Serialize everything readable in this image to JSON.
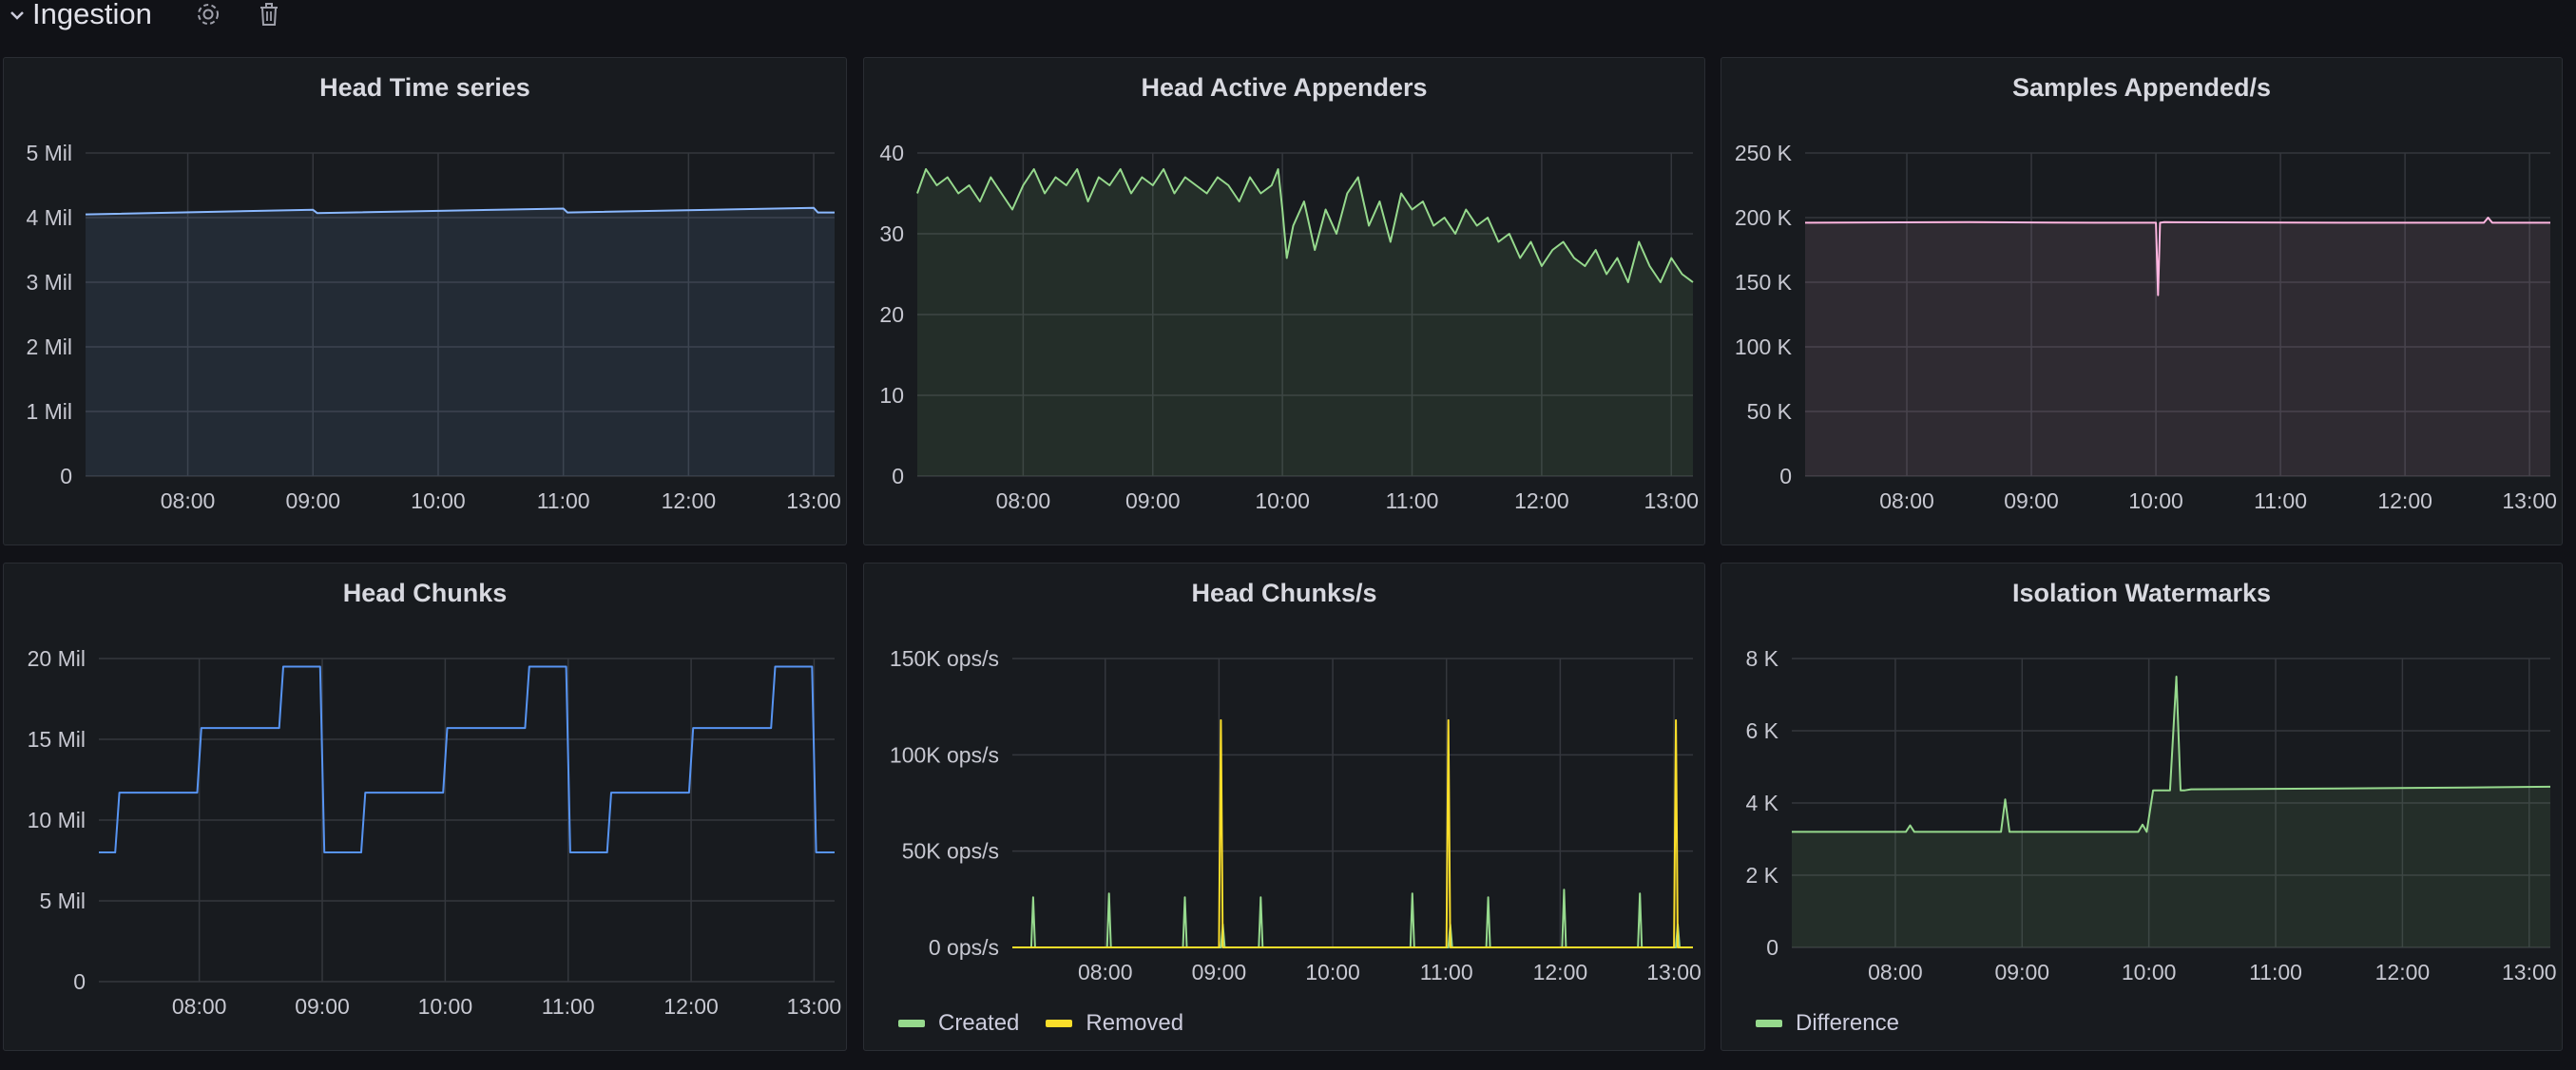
{
  "row": {
    "title": "Ingestion",
    "icons": [
      "chevron-down-icon",
      "gear-icon",
      "trash-icon"
    ]
  },
  "colors": {
    "grid": "#34373d",
    "axis_text": "#c7c8d1",
    "cyan": "#8ab8ff",
    "green": "#96d98d",
    "pink": "#ffb6e1",
    "blue": "#5794f2",
    "yellow": "#fade2a"
  },
  "chart_data": [
    {
      "id": "head-time-series",
      "type": "area",
      "title": "Head Time series",
      "x_ticks": [
        "08:00",
        "09:00",
        "10:00",
        "11:00",
        "12:00",
        "13:00"
      ],
      "x_range": [
        "07:11",
        "13:10"
      ],
      "y_ticks": [
        "5 Mil",
        "4 Mil",
        "3 Mil",
        "2 Mil",
        "1 Mil",
        "0"
      ],
      "ylim": [
        0,
        5000000
      ],
      "grid": true,
      "series": [
        {
          "color": "#8ab8ff",
          "x": [
            "07:11",
            "09:00",
            "09:02",
            "11:00",
            "11:02",
            "13:00",
            "13:02",
            "13:10"
          ],
          "y": [
            4050000,
            4120000,
            4070000,
            4140000,
            4080000,
            4150000,
            4080000,
            4080000
          ]
        }
      ]
    },
    {
      "id": "head-active-appenders",
      "type": "area",
      "title": "Head Active Appenders",
      "x_ticks": [
        "08:00",
        "09:00",
        "10:00",
        "11:00",
        "12:00",
        "13:00"
      ],
      "x_range": [
        "07:11",
        "13:10"
      ],
      "y_ticks": [
        "40",
        "30",
        "20",
        "10",
        "0"
      ],
      "ylim": [
        0,
        40
      ],
      "grid": true,
      "series": [
        {
          "color": "#96d98d",
          "x": [
            "07:11",
            "07:15",
            "07:20",
            "07:25",
            "07:30",
            "07:35",
            "07:40",
            "07:45",
            "07:50",
            "07:55",
            "08:00",
            "08:05",
            "08:10",
            "08:15",
            "08:20",
            "08:25",
            "08:30",
            "08:35",
            "08:40",
            "08:45",
            "08:50",
            "08:55",
            "09:00",
            "09:05",
            "09:10",
            "09:15",
            "09:20",
            "09:25",
            "09:30",
            "09:35",
            "09:40",
            "09:45",
            "09:50",
            "09:55",
            "09:58",
            "10:00",
            "10:02",
            "10:05",
            "10:10",
            "10:15",
            "10:20",
            "10:25",
            "10:30",
            "10:35",
            "10:40",
            "10:45",
            "10:50",
            "10:55",
            "11:00",
            "11:05",
            "11:10",
            "11:15",
            "11:20",
            "11:25",
            "11:30",
            "11:35",
            "11:40",
            "11:45",
            "11:50",
            "11:55",
            "12:00",
            "12:05",
            "12:10",
            "12:15",
            "12:20",
            "12:25",
            "12:30",
            "12:35",
            "12:40",
            "12:45",
            "12:50",
            "12:55",
            "13:00",
            "13:05",
            "13:10"
          ],
          "y": [
            35,
            38,
            36,
            37,
            35,
            36,
            34,
            37,
            35,
            33,
            36,
            38,
            35,
            37,
            36,
            38,
            34,
            37,
            36,
            38,
            35,
            37,
            36,
            38,
            35,
            37,
            36,
            35,
            37,
            36,
            34,
            37,
            35,
            36,
            38,
            33,
            27,
            31,
            34,
            28,
            33,
            30,
            35,
            37,
            31,
            34,
            29,
            35,
            33,
            34,
            31,
            32,
            30,
            33,
            31,
            32,
            29,
            30,
            27,
            29,
            26,
            28,
            29,
            27,
            26,
            28,
            25,
            27,
            24,
            29,
            26,
            24,
            27,
            25,
            24
          ]
        }
      ]
    },
    {
      "id": "samples-appended",
      "type": "area",
      "title": "Samples Appended/s",
      "x_ticks": [
        "08:00",
        "09:00",
        "10:00",
        "11:00",
        "12:00",
        "13:00"
      ],
      "x_range": [
        "07:11",
        "13:10"
      ],
      "y_ticks": [
        "250 K",
        "200 K",
        "150 K",
        "100 K",
        "50 K",
        "0"
      ],
      "ylim": [
        0,
        250000
      ],
      "grid": true,
      "series": [
        {
          "color": "#ffb6e1",
          "x": [
            "07:11",
            "08:30",
            "09:30",
            "10:00",
            "10:01",
            "10:02",
            "10:04",
            "11:30",
            "12:38",
            "12:40",
            "12:42",
            "13:10"
          ],
          "y": [
            196000,
            196500,
            196000,
            196000,
            140000,
            196000,
            196500,
            196000,
            196000,
            200000,
            196000,
            196000
          ]
        }
      ]
    },
    {
      "id": "head-chunks",
      "type": "line",
      "title": "Head Chunks",
      "x_ticks": [
        "08:00",
        "09:00",
        "10:00",
        "11:00",
        "12:00",
        "13:00"
      ],
      "x_range": [
        "07:11",
        "13:10"
      ],
      "y_ticks": [
        "20 Mil",
        "15 Mil",
        "10 Mil",
        "5 Mil",
        "0"
      ],
      "ylim": [
        0,
        20000000
      ],
      "grid": true,
      "series": [
        {
          "color": "#5794f2",
          "x": [
            "07:11",
            "07:19",
            "07:21",
            "07:59",
            "08:01",
            "08:39",
            "08:41",
            "08:59",
            "09:01",
            "09:19",
            "09:21",
            "09:59",
            "10:01",
            "10:39",
            "10:41",
            "10:59",
            "11:01",
            "11:19",
            "11:21",
            "11:59",
            "12:01",
            "12:39",
            "12:41",
            "12:59",
            "13:01",
            "13:10"
          ],
          "y": [
            8000000,
            8000000,
            11700000,
            11700000,
            15700000,
            15700000,
            19500000,
            19500000,
            8000000,
            8000000,
            11700000,
            11700000,
            15700000,
            15700000,
            19500000,
            19500000,
            8000000,
            8000000,
            11700000,
            11700000,
            15700000,
            15700000,
            19500000,
            19500000,
            8000000,
            8000000
          ]
        }
      ]
    },
    {
      "id": "head-chunks-rate",
      "type": "line",
      "title": "Head Chunks/s",
      "x_ticks": [
        "08:00",
        "09:00",
        "10:00",
        "11:00",
        "12:00",
        "13:00"
      ],
      "x_range": [
        "07:11",
        "13:10"
      ],
      "y_ticks": [
        "150K ops/s",
        "100K ops/s",
        "50K ops/s",
        "0 ops/s"
      ],
      "ylim": [
        0,
        150000
      ],
      "grid": true,
      "legend": [
        "Created",
        "Removed"
      ],
      "series": [
        {
          "name": "Created",
          "color": "#96d98d",
          "x": [
            "07:11",
            "07:21",
            "07:22",
            "07:23",
            "08:01",
            "08:02",
            "08:03",
            "08:41",
            "08:42",
            "08:43",
            "09:01",
            "09:02",
            "09:03",
            "09:21",
            "09:22",
            "09:23",
            "10:41",
            "10:42",
            "10:43",
            "11:01",
            "11:02",
            "11:03",
            "11:21",
            "11:22",
            "11:23",
            "12:01",
            "12:02",
            "12:03",
            "12:41",
            "12:42",
            "12:43",
            "13:01",
            "13:02",
            "13:03",
            "13:10"
          ],
          "y": [
            0,
            0,
            26000,
            0,
            0,
            28000,
            0,
            0,
            26000,
            0,
            0,
            12000,
            0,
            0,
            26000,
            0,
            0,
            28000,
            0,
            0,
            12000,
            0,
            0,
            26000,
            0,
            0,
            30000,
            0,
            0,
            28000,
            0,
            0,
            12000,
            0,
            0
          ]
        },
        {
          "name": "Removed",
          "color": "#fade2a",
          "x": [
            "07:11",
            "09:00",
            "09:01",
            "09:02",
            "11:00",
            "11:01",
            "11:02",
            "13:00",
            "13:01",
            "13:02",
            "13:10"
          ],
          "y": [
            0,
            0,
            118000,
            0,
            0,
            118000,
            0,
            0,
            118000,
            0,
            0
          ]
        }
      ]
    },
    {
      "id": "isolation-watermarks",
      "type": "area",
      "title": "Isolation Watermarks",
      "x_ticks": [
        "08:00",
        "09:00",
        "10:00",
        "11:00",
        "12:00",
        "13:00"
      ],
      "x_range": [
        "07:11",
        "13:10"
      ],
      "y_ticks": [
        "8 K",
        "6 K",
        "4 K",
        "2 K",
        "0"
      ],
      "ylim": [
        0,
        8000
      ],
      "grid": true,
      "legend": [
        "Difference"
      ],
      "series": [
        {
          "name": "Difference",
          "color": "#96d98d",
          "x": [
            "07:11",
            "08:05",
            "08:07",
            "08:09",
            "08:50",
            "08:52",
            "08:54",
            "09:55",
            "09:57",
            "09:59",
            "10:02",
            "10:05",
            "10:10",
            "10:13",
            "10:15",
            "10:17",
            "10:20",
            "11:30",
            "12:30",
            "13:10"
          ],
          "y": [
            3200,
            3200,
            3380,
            3200,
            3200,
            4100,
            3200,
            3200,
            3400,
            3200,
            4350,
            4350,
            4350,
            7500,
            4350,
            4350,
            4380,
            4400,
            4430,
            4450
          ]
        }
      ]
    }
  ]
}
